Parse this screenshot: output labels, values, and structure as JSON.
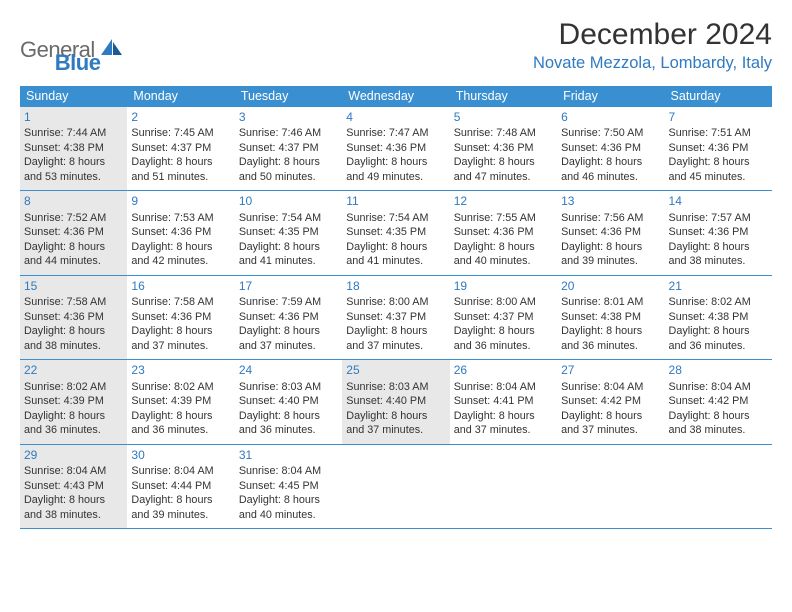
{
  "brand": {
    "text1": "General",
    "text2": "Blue"
  },
  "title": "December 2024",
  "location": "Novate Mezzola, Lombardy, Italy",
  "header_bg": "#3a8fd0",
  "accent": "#2f7ac0",
  "shaded_bg": "#e8e8e8",
  "day_headers": [
    "Sunday",
    "Monday",
    "Tuesday",
    "Wednesday",
    "Thursday",
    "Friday",
    "Saturday"
  ],
  "weeks": [
    [
      {
        "num": "1",
        "shaded": true,
        "sunrise": "7:44 AM",
        "sunset": "4:38 PM",
        "daylight": "8 hours and 53 minutes."
      },
      {
        "num": "2",
        "shaded": false,
        "sunrise": "7:45 AM",
        "sunset": "4:37 PM",
        "daylight": "8 hours and 51 minutes."
      },
      {
        "num": "3",
        "shaded": false,
        "sunrise": "7:46 AM",
        "sunset": "4:37 PM",
        "daylight": "8 hours and 50 minutes."
      },
      {
        "num": "4",
        "shaded": false,
        "sunrise": "7:47 AM",
        "sunset": "4:36 PM",
        "daylight": "8 hours and 49 minutes."
      },
      {
        "num": "5",
        "shaded": false,
        "sunrise": "7:48 AM",
        "sunset": "4:36 PM",
        "daylight": "8 hours and 47 minutes."
      },
      {
        "num": "6",
        "shaded": false,
        "sunrise": "7:50 AM",
        "sunset": "4:36 PM",
        "daylight": "8 hours and 46 minutes."
      },
      {
        "num": "7",
        "shaded": false,
        "sunrise": "7:51 AM",
        "sunset": "4:36 PM",
        "daylight": "8 hours and 45 minutes."
      }
    ],
    [
      {
        "num": "8",
        "shaded": true,
        "sunrise": "7:52 AM",
        "sunset": "4:36 PM",
        "daylight": "8 hours and 44 minutes."
      },
      {
        "num": "9",
        "shaded": false,
        "sunrise": "7:53 AM",
        "sunset": "4:36 PM",
        "daylight": "8 hours and 42 minutes."
      },
      {
        "num": "10",
        "shaded": false,
        "sunrise": "7:54 AM",
        "sunset": "4:35 PM",
        "daylight": "8 hours and 41 minutes."
      },
      {
        "num": "11",
        "shaded": false,
        "sunrise": "7:54 AM",
        "sunset": "4:35 PM",
        "daylight": "8 hours and 41 minutes."
      },
      {
        "num": "12",
        "shaded": false,
        "sunrise": "7:55 AM",
        "sunset": "4:36 PM",
        "daylight": "8 hours and 40 minutes."
      },
      {
        "num": "13",
        "shaded": false,
        "sunrise": "7:56 AM",
        "sunset": "4:36 PM",
        "daylight": "8 hours and 39 minutes."
      },
      {
        "num": "14",
        "shaded": false,
        "sunrise": "7:57 AM",
        "sunset": "4:36 PM",
        "daylight": "8 hours and 38 minutes."
      }
    ],
    [
      {
        "num": "15",
        "shaded": true,
        "sunrise": "7:58 AM",
        "sunset": "4:36 PM",
        "daylight": "8 hours and 38 minutes."
      },
      {
        "num": "16",
        "shaded": false,
        "sunrise": "7:58 AM",
        "sunset": "4:36 PM",
        "daylight": "8 hours and 37 minutes."
      },
      {
        "num": "17",
        "shaded": false,
        "sunrise": "7:59 AM",
        "sunset": "4:36 PM",
        "daylight": "8 hours and 37 minutes."
      },
      {
        "num": "18",
        "shaded": false,
        "sunrise": "8:00 AM",
        "sunset": "4:37 PM",
        "daylight": "8 hours and 37 minutes."
      },
      {
        "num": "19",
        "shaded": false,
        "sunrise": "8:00 AM",
        "sunset": "4:37 PM",
        "daylight": "8 hours and 36 minutes."
      },
      {
        "num": "20",
        "shaded": false,
        "sunrise": "8:01 AM",
        "sunset": "4:38 PM",
        "daylight": "8 hours and 36 minutes."
      },
      {
        "num": "21",
        "shaded": false,
        "sunrise": "8:02 AM",
        "sunset": "4:38 PM",
        "daylight": "8 hours and 36 minutes."
      }
    ],
    [
      {
        "num": "22",
        "shaded": true,
        "sunrise": "8:02 AM",
        "sunset": "4:39 PM",
        "daylight": "8 hours and 36 minutes."
      },
      {
        "num": "23",
        "shaded": false,
        "sunrise": "8:02 AM",
        "sunset": "4:39 PM",
        "daylight": "8 hours and 36 minutes."
      },
      {
        "num": "24",
        "shaded": false,
        "sunrise": "8:03 AM",
        "sunset": "4:40 PM",
        "daylight": "8 hours and 36 minutes."
      },
      {
        "num": "25",
        "shaded": true,
        "sunrise": "8:03 AM",
        "sunset": "4:40 PM",
        "daylight": "8 hours and 37 minutes."
      },
      {
        "num": "26",
        "shaded": false,
        "sunrise": "8:04 AM",
        "sunset": "4:41 PM",
        "daylight": "8 hours and 37 minutes."
      },
      {
        "num": "27",
        "shaded": false,
        "sunrise": "8:04 AM",
        "sunset": "4:42 PM",
        "daylight": "8 hours and 37 minutes."
      },
      {
        "num": "28",
        "shaded": false,
        "sunrise": "8:04 AM",
        "sunset": "4:42 PM",
        "daylight": "8 hours and 38 minutes."
      }
    ],
    [
      {
        "num": "29",
        "shaded": true,
        "sunrise": "8:04 AM",
        "sunset": "4:43 PM",
        "daylight": "8 hours and 38 minutes."
      },
      {
        "num": "30",
        "shaded": false,
        "sunrise": "8:04 AM",
        "sunset": "4:44 PM",
        "daylight": "8 hours and 39 minutes."
      },
      {
        "num": "31",
        "shaded": false,
        "sunrise": "8:04 AM",
        "sunset": "4:45 PM",
        "daylight": "8 hours and 40 minutes."
      },
      {
        "num": "",
        "shaded": false,
        "empty": true
      },
      {
        "num": "",
        "shaded": false,
        "empty": true
      },
      {
        "num": "",
        "shaded": false,
        "empty": true
      },
      {
        "num": "",
        "shaded": false,
        "empty": true
      }
    ]
  ],
  "labels": {
    "sunrise": "Sunrise:",
    "sunset": "Sunset:",
    "daylight": "Daylight:"
  }
}
